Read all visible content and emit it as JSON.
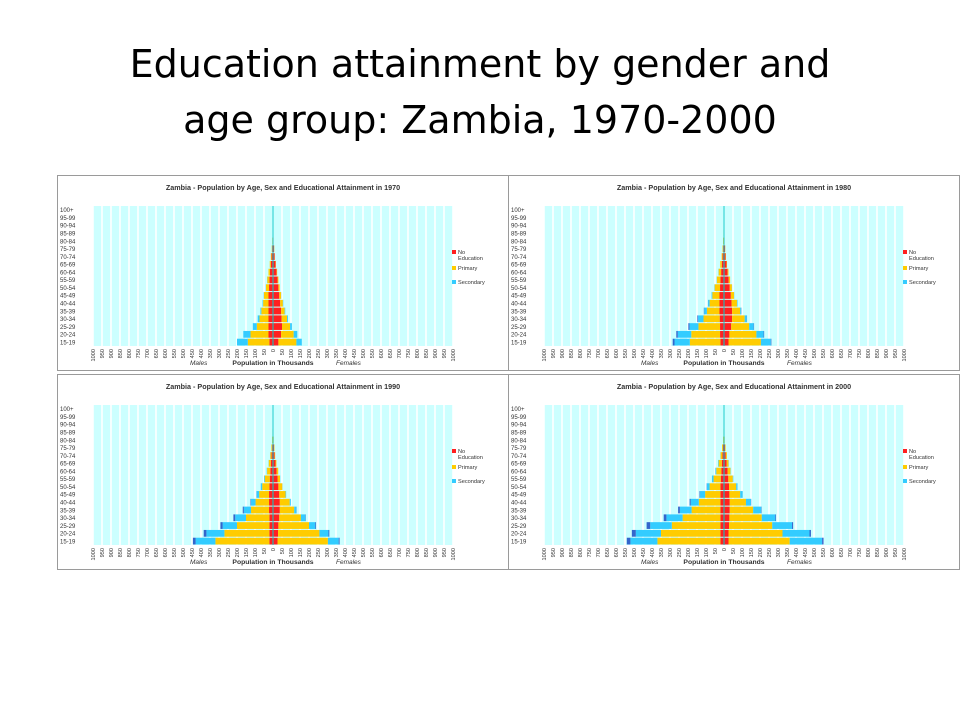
{
  "slide": {
    "title_line1": "Education attainment by gender and",
    "title_line2": "age group: Zambia, 1970-2000"
  },
  "colors": {
    "plot_bg": "#ccffff",
    "grid": "#ffffff",
    "no_education": "#ff2020",
    "primary": "#ffcc00",
    "secondary": "#33ccff",
    "tertiary": "#3366cc",
    "center_line": "#00cccc"
  },
  "chart_data": [
    {
      "type": "bar",
      "title": "Zambia - Population by Age, Sex and Educational Attainment in 1970",
      "xlabel": "Population in Thousands",
      "males_label": "Males",
      "females_label": "Females",
      "xlim": [
        -1000,
        1000
      ],
      "x_tick_labels": [
        "1000",
        "950",
        "900",
        "850",
        "800",
        "750",
        "700",
        "650",
        "600",
        "550",
        "500",
        "450",
        "400",
        "350",
        "300",
        "250",
        "200",
        "150",
        "100",
        "50",
        "0",
        "50",
        "100",
        "150",
        "200",
        "250",
        "300",
        "350",
        "400",
        "450",
        "500",
        "550",
        "600",
        "650",
        "700",
        "750",
        "800",
        "850",
        "900",
        "950",
        "1000"
      ],
      "categories": [
        "15-19",
        "20-24",
        "25-29",
        "30-34",
        "35-39",
        "40-44",
        "45-49",
        "50-54",
        "55-59",
        "60-64",
        "65-69",
        "70-74",
        "75-79",
        "80-84",
        "85-89",
        "90-94",
        "95-99",
        "100+"
      ],
      "legend": [
        "No Education",
        "Primary",
        "Secondary"
      ],
      "males": {
        "no_education": [
          20,
          25,
          25,
          25,
          25,
          25,
          25,
          22,
          20,
          17,
          12,
          8,
          5,
          3,
          2,
          1,
          0,
          0
        ],
        "primary": [
          120,
          100,
          65,
          50,
          40,
          30,
          25,
          17,
          12,
          8,
          6,
          4,
          2,
          1,
          0,
          0,
          0,
          0
        ],
        "secondary": [
          60,
          40,
          22,
          10,
          5,
          3,
          2,
          1,
          1,
          0,
          0,
          0,
          0,
          0,
          0,
          0,
          0,
          0
        ],
        "tertiary": [
          0,
          0,
          0,
          0,
          0,
          0,
          0,
          0,
          0,
          0,
          0,
          0,
          0,
          0,
          0,
          0,
          0,
          0
        ]
      },
      "females": {
        "no_education": [
          30,
          45,
          50,
          48,
          45,
          40,
          35,
          30,
          25,
          20,
          14,
          9,
          6,
          3,
          2,
          1,
          0,
          0
        ],
        "primary": [
          100,
          70,
          45,
          30,
          20,
          15,
          10,
          7,
          5,
          3,
          2,
          1,
          1,
          0,
          0,
          0,
          0,
          0
        ],
        "secondary": [
          30,
          20,
          10,
          5,
          3,
          2,
          1,
          0,
          0,
          0,
          0,
          0,
          0,
          0,
          0,
          0,
          0,
          0
        ],
        "tertiary": [
          0,
          0,
          0,
          0,
          0,
          0,
          0,
          0,
          0,
          0,
          0,
          0,
          0,
          0,
          0,
          0,
          0,
          0
        ]
      }
    },
    {
      "type": "bar",
      "title": "Zambia - Population by Age, Sex and Educational Attainment in 1980",
      "xlabel": "Population in Thousands",
      "males_label": "Males",
      "females_label": "Females",
      "xlim": [
        -1000,
        1000
      ],
      "x_tick_labels": [
        "1000",
        "950",
        "900",
        "850",
        "800",
        "750",
        "700",
        "650",
        "600",
        "550",
        "500",
        "450",
        "400",
        "350",
        "300",
        "250",
        "200",
        "150",
        "100",
        "50",
        "0",
        "50",
        "100",
        "150",
        "200",
        "250",
        "300",
        "350",
        "400",
        "450",
        "500",
        "550",
        "600",
        "650",
        "700",
        "750",
        "800",
        "850",
        "900",
        "950",
        "1000"
      ],
      "categories": [
        "15-19",
        "20-24",
        "25-29",
        "30-34",
        "35-39",
        "40-44",
        "45-49",
        "50-54",
        "55-59",
        "60-64",
        "65-69",
        "70-74",
        "75-79",
        "80-84",
        "85-89",
        "90-94",
        "95-99",
        "100+"
      ],
      "legend": [
        "No Education",
        "Primary",
        "Secondary"
      ],
      "males": {
        "no_education": [
          20,
          22,
          22,
          24,
          25,
          25,
          25,
          22,
          20,
          16,
          12,
          8,
          5,
          3,
          2,
          1,
          0,
          0
        ],
        "primary": [
          170,
          160,
          120,
          90,
          70,
          55,
          40,
          30,
          20,
          14,
          9,
          5,
          3,
          2,
          1,
          0,
          0,
          0
        ],
        "secondary": [
          85,
          75,
          50,
          30,
          15,
          8,
          4,
          2,
          1,
          1,
          0,
          0,
          0,
          0,
          0,
          0,
          0,
          0
        ],
        "tertiary": [
          10,
          8,
          6,
          4,
          2,
          1,
          0,
          0,
          0,
          0,
          0,
          0,
          0,
          0,
          0,
          0,
          0,
          0
        ]
      },
      "females": {
        "no_education": [
          25,
          30,
          40,
          45,
          45,
          42,
          38,
          32,
          26,
          20,
          14,
          9,
          6,
          3,
          2,
          1,
          0,
          0
        ],
        "primary": [
          180,
          150,
          100,
          70,
          45,
          30,
          18,
          12,
          8,
          5,
          3,
          2,
          1,
          0,
          0,
          0,
          0,
          0
        ],
        "secondary": [
          55,
          40,
          25,
          12,
          6,
          3,
          1,
          1,
          0,
          0,
          0,
          0,
          0,
          0,
          0,
          0,
          0,
          0
        ],
        "tertiary": [
          3,
          3,
          2,
          1,
          1,
          0,
          0,
          0,
          0,
          0,
          0,
          0,
          0,
          0,
          0,
          0,
          0,
          0
        ]
      }
    },
    {
      "type": "bar",
      "title": "Zambia - Population by Age, Sex and Educational Attainment in 1990",
      "xlabel": "Population in Thousands",
      "males_label": "Males",
      "females_label": "Females",
      "xlim": [
        -1000,
        1000
      ],
      "x_tick_labels": [
        "1000",
        "950",
        "900",
        "850",
        "800",
        "750",
        "700",
        "650",
        "600",
        "550",
        "500",
        "450",
        "400",
        "350",
        "300",
        "250",
        "200",
        "150",
        "100",
        "50",
        "0",
        "50",
        "100",
        "150",
        "200",
        "250",
        "300",
        "350",
        "400",
        "450",
        "500",
        "550",
        "600",
        "650",
        "700",
        "750",
        "800",
        "850",
        "900",
        "950",
        "1000"
      ],
      "categories": [
        "15-19",
        "20-24",
        "25-29",
        "30-34",
        "35-39",
        "40-44",
        "45-49",
        "50-54",
        "55-59",
        "60-64",
        "65-69",
        "70-74",
        "75-79",
        "80-84",
        "85-89",
        "90-94",
        "95-99",
        "100+"
      ],
      "legend": [
        "No Education",
        "Primary",
        "Secondary"
      ],
      "males": {
        "no_education": [
          20,
          20,
          20,
          20,
          22,
          22,
          22,
          20,
          18,
          15,
          12,
          8,
          5,
          3,
          2,
          1,
          0,
          0
        ],
        "primary": [
          300,
          250,
          180,
          130,
          100,
          75,
          55,
          40,
          28,
          18,
          12,
          7,
          4,
          2,
          1,
          0,
          0,
          0
        ],
        "secondary": [
          110,
          100,
          80,
          60,
          40,
          25,
          14,
          8,
          4,
          2,
          1,
          1,
          0,
          0,
          0,
          0,
          0,
          0
        ],
        "tertiary": [
          15,
          15,
          12,
          10,
          6,
          3,
          1,
          0,
          0,
          0,
          0,
          0,
          0,
          0,
          0,
          0,
          0,
          0
        ]
      },
      "females": {
        "no_education": [
          25,
          28,
          30,
          35,
          38,
          38,
          35,
          30,
          25,
          20,
          14,
          9,
          6,
          3,
          2,
          1,
          0,
          0
        ],
        "primary": [
          280,
          230,
          170,
          120,
          80,
          55,
          35,
          22,
          14,
          9,
          5,
          3,
          2,
          1,
          0,
          0,
          0,
          0
        ],
        "secondary": [
          60,
          50,
          35,
          25,
          12,
          6,
          3,
          1,
          1,
          0,
          0,
          0,
          0,
          0,
          0,
          0,
          0,
          0
        ],
        "tertiary": [
          5,
          5,
          4,
          2,
          1,
          0,
          0,
          0,
          0,
          0,
          0,
          0,
          0,
          0,
          0,
          0,
          0,
          0
        ]
      }
    },
    {
      "type": "bar",
      "title": "Zambia - Population by Age, Sex and Educational Attainment in 2000",
      "xlabel": "Population in Thousands",
      "males_label": "Males",
      "females_label": "Females",
      "xlim": [
        -1000,
        1000
      ],
      "x_tick_labels": [
        "1000",
        "950",
        "900",
        "850",
        "800",
        "750",
        "700",
        "650",
        "600",
        "550",
        "500",
        "450",
        "400",
        "350",
        "300",
        "250",
        "200",
        "150",
        "100",
        "50",
        "0",
        "50",
        "100",
        "150",
        "200",
        "250",
        "300",
        "350",
        "400",
        "450",
        "500",
        "550",
        "600",
        "650",
        "700",
        "750",
        "800",
        "850",
        "900",
        "950",
        "1000"
      ],
      "categories": [
        "15-19",
        "20-24",
        "25-29",
        "30-34",
        "35-39",
        "40-44",
        "45-49",
        "50-54",
        "55-59",
        "60-64",
        "65-69",
        "70-74",
        "75-79",
        "80-84",
        "85-89",
        "90-94",
        "95-99",
        "100+"
      ],
      "legend": [
        "No Education",
        "Primary",
        "Secondary"
      ],
      "males": {
        "no_education": [
          20,
          20,
          20,
          20,
          20,
          20,
          20,
          20,
          18,
          15,
          12,
          9,
          6,
          3,
          2,
          1,
          0,
          0
        ],
        "primary": [
          350,
          330,
          270,
          210,
          160,
          120,
          85,
          60,
          40,
          28,
          18,
          10,
          5,
          2,
          1,
          0,
          0,
          0
        ],
        "secondary": [
          150,
          140,
          120,
          90,
          65,
          45,
          28,
          16,
          9,
          5,
          3,
          1,
          0,
          0,
          0,
          0,
          0,
          0
        ],
        "tertiary": [
          20,
          22,
          20,
          15,
          10,
          6,
          3,
          1,
          0,
          0,
          0,
          0,
          0,
          0,
          0,
          0,
          0,
          0
        ]
      },
      "females": {
        "no_education": [
          25,
          25,
          28,
          30,
          32,
          32,
          30,
          28,
          24,
          20,
          15,
          10,
          6,
          3,
          2,
          1,
          0,
          0
        ],
        "primary": [
          340,
          300,
          240,
          180,
          130,
          90,
          60,
          40,
          25,
          16,
          10,
          6,
          3,
          1,
          0,
          0,
          0,
          0
        ],
        "secondary": [
          180,
          150,
          110,
          75,
          45,
          28,
          14,
          7,
          3,
          1,
          1,
          0,
          0,
          0,
          0,
          0,
          0,
          0
        ],
        "tertiary": [
          8,
          8,
          6,
          4,
          2,
          1,
          0,
          0,
          0,
          0,
          0,
          0,
          0,
          0,
          0,
          0,
          0,
          0
        ]
      }
    }
  ]
}
